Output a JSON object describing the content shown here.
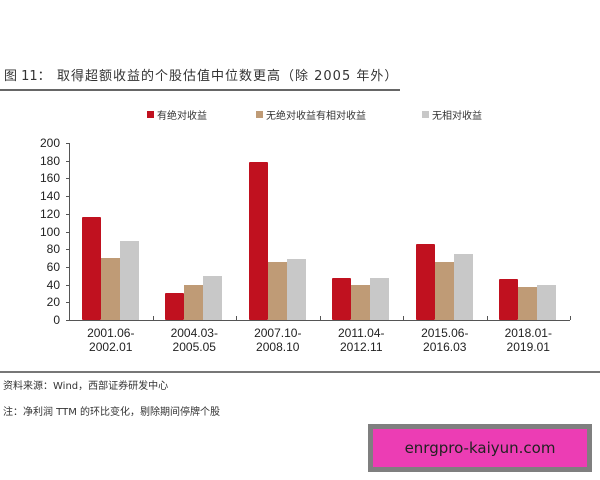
{
  "figure": {
    "label": "图 11：",
    "title": "取得超额收益的个股估值中位数更高（除 2005 年外）"
  },
  "legend": [
    {
      "label": "有绝对收益",
      "color": "#c0111f"
    },
    {
      "label": "无绝对收益有相对收益",
      "color": "#bf9b76"
    },
    {
      "label": "无相对收益",
      "color": "#c8c8c8"
    }
  ],
  "chart_data": {
    "type": "bar",
    "title": "取得超额收益的个股估值中位数更高（除 2005 年外）",
    "xlabel": "",
    "ylabel": "",
    "ylim": [
      0,
      200
    ],
    "yticks": [
      0,
      20,
      40,
      60,
      80,
      100,
      120,
      140,
      160,
      180,
      200
    ],
    "grid": false,
    "legend_position": "top",
    "categories": [
      "2001.06-2002.01",
      "2004.03-2005.05",
      "2007.10-2008.10",
      "2011.04-2012.11",
      "2015.06-2016.03",
      "2018.01-2019.01"
    ],
    "category_lines": [
      [
        "2001.06-",
        "2002.01"
      ],
      [
        "2004.03-",
        "2005.05"
      ],
      [
        "2007.10-",
        "2008.10"
      ],
      [
        "2011.04-",
        "2012.11"
      ],
      [
        "2015.06-",
        "2016.03"
      ],
      [
        "2018.01-",
        "2019.01"
      ]
    ],
    "series": [
      {
        "name": "有绝对收益",
        "color": "#c0111f",
        "values": [
          116,
          31,
          179,
          47,
          86,
          46
        ]
      },
      {
        "name": "无绝对收益有相对收益",
        "color": "#bf9b76",
        "values": [
          70,
          39,
          65,
          39,
          66,
          37
        ]
      },
      {
        "name": "无相对收益",
        "color": "#c8c8c8",
        "values": [
          89,
          50,
          69,
          48,
          75,
          40
        ]
      }
    ]
  },
  "footer": {
    "source": "资料来源：Wind，西部证券研发中心",
    "note": "注：净利润 TTM 的环比变化，剔除期间停牌个股"
  },
  "watermark": {
    "text": "enrgpro-kaiyun.com",
    "bg_color": "#ec3db4"
  }
}
